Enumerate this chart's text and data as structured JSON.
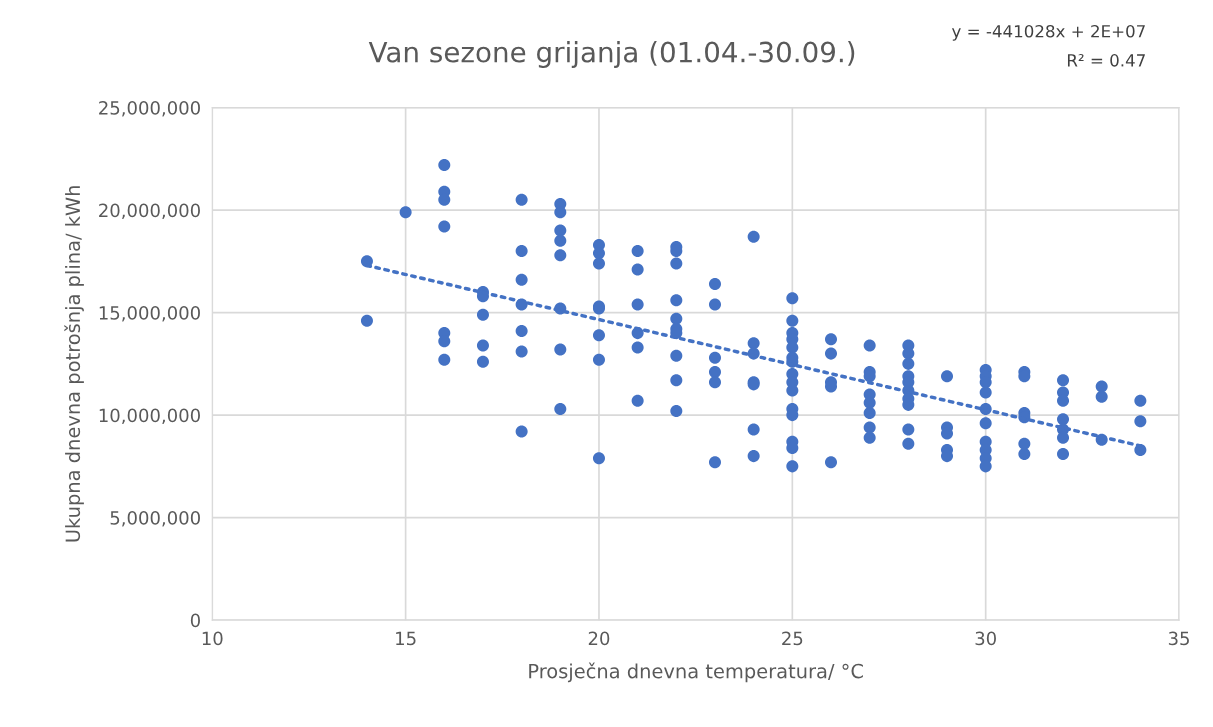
{
  "chart_data": {
    "type": "scatter",
    "title": "Van sezone grijanja (01.04.-30.09.)",
    "xlabel": "Prosječna dnevna temperatura/ °C",
    "ylabel": "Ukupna dnevna potrošnja plina/ kWh",
    "annotations": [
      "y = -441028x + 2E+07",
      "R² = 0.47"
    ],
    "xlim": [
      10,
      35
    ],
    "xticks": [
      10,
      15,
      20,
      25,
      30,
      35
    ],
    "ylim": [
      0,
      25000000
    ],
    "yticks": [
      {
        "value": 0,
        "label": "0"
      },
      {
        "value": 5000000,
        "label": "5,000,000"
      },
      {
        "value": 10000000,
        "label": "10,000,000"
      },
      {
        "value": 15000000,
        "label": "15,000,000"
      },
      {
        "value": 20000000,
        "label": "20,000,000"
      },
      {
        "value": 25000000,
        "label": "25,000,000"
      }
    ],
    "grid": true,
    "marker": "circle",
    "series": [
      {
        "color": "#4472c4",
        "x": [
          14,
          14,
          15,
          16,
          16,
          16,
          16,
          16,
          16,
          16,
          17,
          17,
          17,
          17,
          17,
          18,
          18,
          18,
          18,
          18,
          18,
          18,
          19,
          19,
          19,
          19,
          19,
          19,
          19,
          19,
          20,
          20,
          20,
          20,
          20,
          20,
          20,
          20,
          21,
          21,
          21,
          21,
          21,
          21,
          22,
          22,
          22,
          22,
          22,
          22,
          22,
          22,
          22,
          22,
          23,
          23,
          23,
          23,
          23,
          23,
          24,
          24,
          24,
          24,
          24,
          24,
          24,
          25,
          25,
          25,
          25,
          25,
          25,
          25,
          25,
          25,
          25,
          25,
          25,
          25,
          25,
          25,
          26,
          26,
          26,
          26,
          26,
          27,
          27,
          27,
          27,
          27,
          27,
          27,
          27,
          28,
          28,
          28,
          28,
          28,
          28,
          28,
          28,
          28,
          28,
          29,
          29,
          29,
          29,
          29,
          30,
          30,
          30,
          30,
          30,
          30,
          30,
          30,
          30,
          30,
          31,
          31,
          31,
          31,
          31,
          31,
          32,
          32,
          32,
          32,
          32,
          32,
          32,
          33,
          33,
          33,
          34,
          34,
          34
        ],
        "values": [
          17500000,
          14600000,
          19900000,
          22200000,
          20900000,
          20500000,
          19200000,
          14000000,
          13600000,
          12700000,
          16000000,
          15800000,
          14900000,
          13400000,
          12600000,
          20500000,
          18000000,
          16600000,
          15400000,
          14100000,
          13100000,
          9200000,
          20300000,
          19900000,
          19000000,
          18500000,
          17800000,
          15200000,
          13200000,
          10300000,
          18300000,
          17900000,
          17400000,
          15300000,
          15200000,
          13900000,
          12700000,
          7900000,
          18000000,
          17100000,
          15400000,
          14000000,
          13300000,
          10700000,
          18200000,
          18000000,
          17400000,
          15600000,
          14700000,
          14200000,
          14000000,
          12900000,
          11700000,
          10200000,
          16400000,
          15400000,
          12800000,
          12100000,
          11600000,
          7700000,
          18700000,
          13500000,
          13000000,
          11600000,
          11500000,
          9300000,
          8000000,
          15700000,
          14600000,
          14000000,
          13700000,
          13300000,
          12800000,
          12600000,
          12000000,
          11600000,
          11200000,
          10300000,
          10000000,
          8700000,
          8400000,
          7500000,
          13700000,
          13000000,
          11600000,
          11400000,
          7700000,
          13400000,
          12100000,
          11900000,
          11000000,
          10600000,
          10100000,
          9400000,
          8900000,
          13400000,
          13000000,
          12500000,
          11900000,
          11600000,
          11200000,
          10800000,
          10500000,
          9300000,
          8600000,
          11900000,
          9400000,
          9100000,
          8300000,
          8000000,
          12200000,
          11900000,
          11600000,
          11100000,
          10300000,
          9600000,
          8700000,
          8300000,
          7900000,
          7500000,
          12100000,
          11900000,
          10100000,
          9900000,
          8600000,
          8100000,
          11700000,
          11100000,
          10700000,
          9800000,
          9300000,
          8900000,
          8100000,
          11400000,
          10900000,
          8800000,
          10700000,
          9700000,
          8300000
        ]
      },
      {
        "type": "line",
        "color": "#4472c4",
        "line_style": "dotted",
        "marker": "none",
        "x": [
          14,
          34
        ],
        "values": [
          17300000,
          8500000
        ]
      }
    ]
  }
}
